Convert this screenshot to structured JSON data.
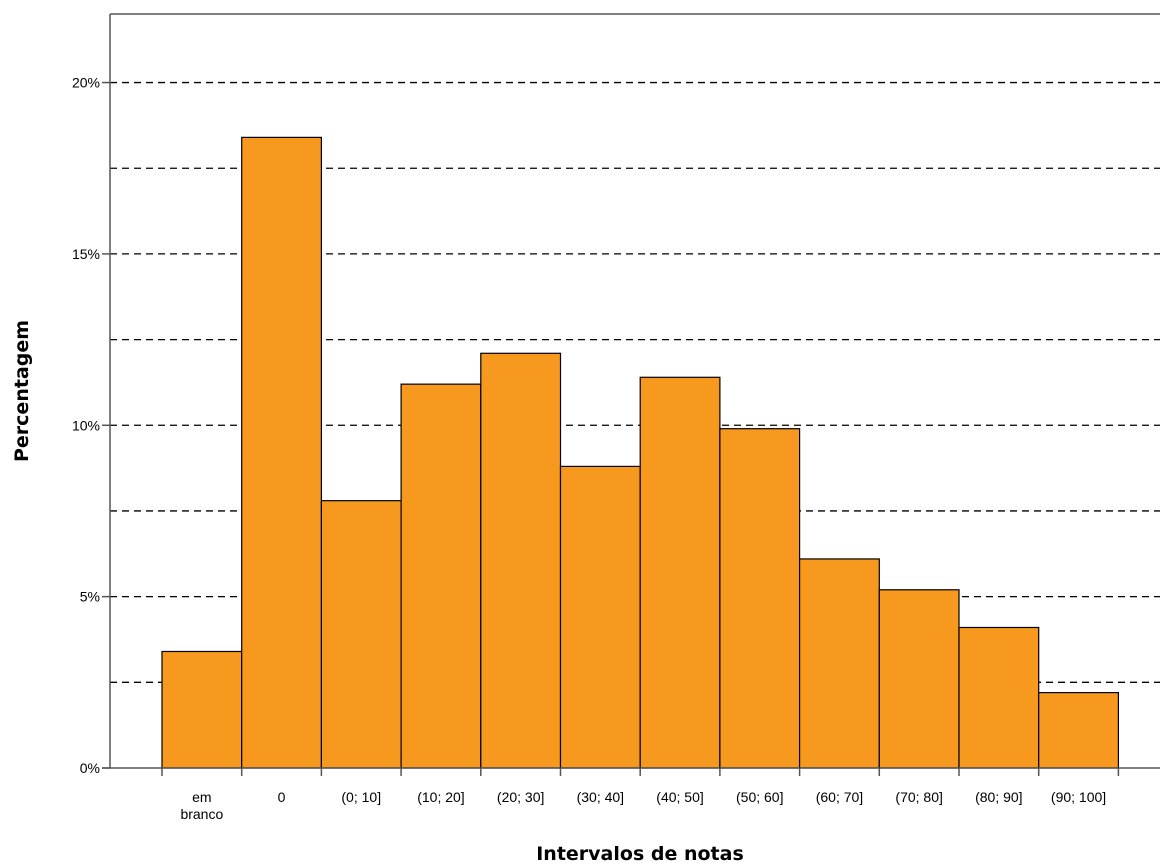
{
  "chart_data": {
    "type": "bar",
    "title": "",
    "xlabel": "Intervalos de notas",
    "ylabel": "Percentagem",
    "ylim": [
      0,
      22
    ],
    "yticks": [
      0,
      5,
      10,
      15,
      20
    ],
    "ytick_labels": [
      "0%",
      "5%",
      "10%",
      "15%",
      "20%"
    ],
    "gridlines": [
      2.5,
      5,
      7.5,
      10,
      12.5,
      15,
      17.5,
      20
    ],
    "grid": true,
    "legend": "none",
    "bar_color": "#f7991f",
    "categories": [
      [
        "em",
        "branco"
      ],
      [
        "0"
      ],
      [
        "(0; 10]"
      ],
      [
        "(10; 20]"
      ],
      [
        "(20; 30]"
      ],
      [
        "(30; 40]"
      ],
      [
        "(40; 50]"
      ],
      [
        "(50; 60]"
      ],
      [
        "(60; 70]"
      ],
      [
        "(70; 80]"
      ],
      [
        "(80; 90]"
      ],
      [
        "(90; 100]"
      ]
    ],
    "values": [
      3.4,
      18.4,
      7.8,
      11.2,
      12.1,
      8.8,
      11.4,
      9.9,
      6.1,
      5.2,
      4.1,
      2.2
    ]
  }
}
